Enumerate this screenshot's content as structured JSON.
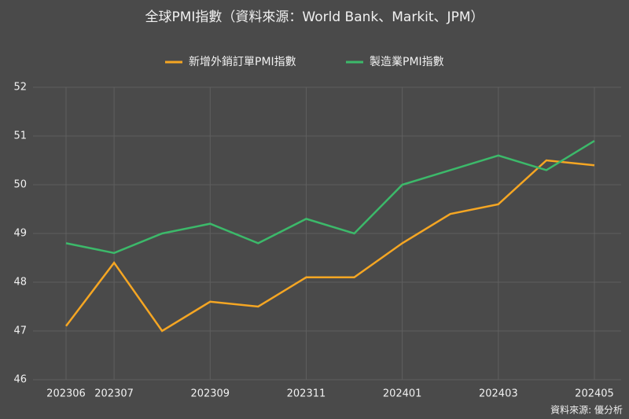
{
  "chart_data": {
    "type": "line",
    "title": "全球PMI指數（資料來源：World Bank、Markit、JPM）",
    "categories": [
      "202306",
      "202307",
      null,
      "202309",
      null,
      "202311",
      null,
      "202401",
      null,
      "202403",
      null,
      "202405"
    ],
    "series": [
      {
        "name": "新增外銷訂單PMI指數",
        "color": "#f5a623",
        "values": [
          47.1,
          48.4,
          47.0,
          47.6,
          47.5,
          48.1,
          48.1,
          48.8,
          49.4,
          49.6,
          50.5,
          50.4
        ]
      },
      {
        "name": "製造業PMI指數",
        "color": "#3cb96a",
        "values": [
          48.8,
          48.6,
          49.0,
          49.2,
          48.8,
          49.3,
          49.0,
          50.0,
          50.3,
          50.6,
          50.3,
          50.9
        ]
      }
    ],
    "ylim": [
      46,
      52
    ],
    "yticks": [
      46,
      47,
      48,
      49,
      50,
      51,
      52
    ],
    "grid": true,
    "source": "資料來源: 優分析"
  }
}
